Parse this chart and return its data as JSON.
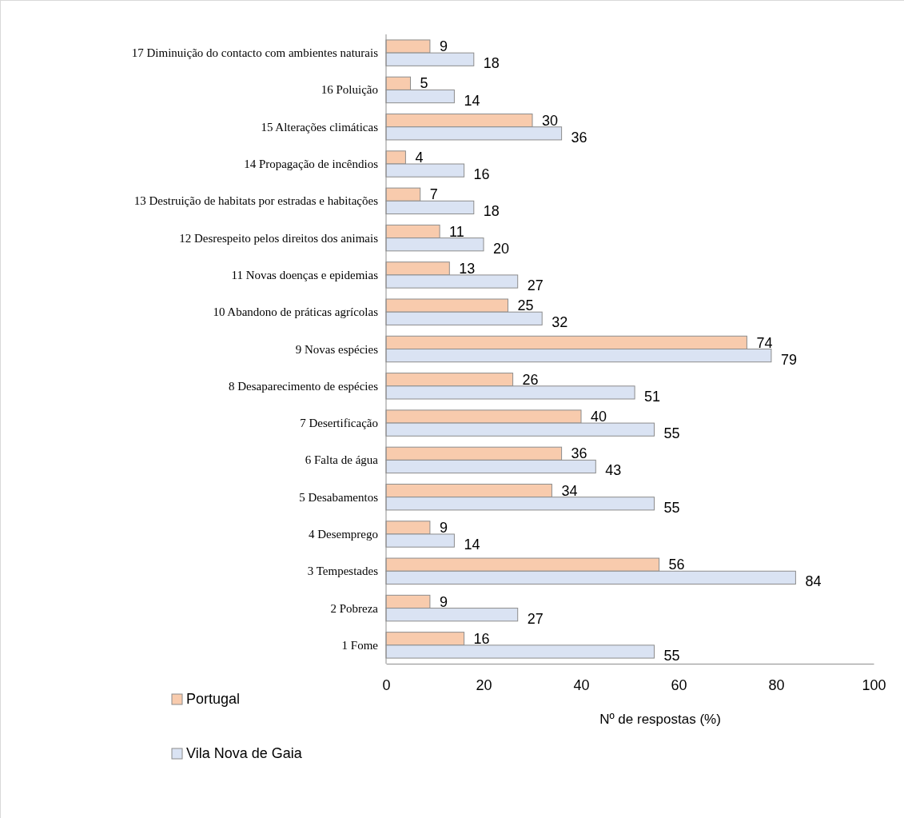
{
  "chart_data": {
    "type": "bar",
    "orientation": "horizontal",
    "xlabel": "Nº de respostas (%)",
    "categories": [
      "17 Diminuição do contacto com ambientes naturais",
      "16 Poluição",
      "15 Alterações climáticas",
      "14 Propagação de incêndios",
      "13 Destruição de habitats por estradas e habitações",
      "12 Desrespeito pelos direitos dos animais",
      "11 Novas doenças e epidemias",
      "10 Abandono de práticas agrícolas",
      "9 Novas espécies",
      "8 Desaparecimento de espécies",
      "7 Desertificação",
      "6 Falta de água",
      "5 Desabamentos",
      "4 Desemprego",
      "3 Tempestades",
      "2 Pobreza",
      "1 Fome"
    ],
    "series": [
      {
        "name": "Portugal",
        "color": "#f8cbad",
        "values": [
          9,
          5,
          30,
          4,
          7,
          11,
          13,
          25,
          74,
          26,
          40,
          36,
          34,
          9,
          56,
          9,
          16
        ]
      },
      {
        "name": "Vila Nova de Gaia",
        "color": "#dae3f3",
        "values": [
          18,
          14,
          36,
          16,
          18,
          20,
          27,
          32,
          79,
          51,
          55,
          43,
          55,
          14,
          84,
          27,
          55
        ]
      }
    ],
    "xlim": [
      0,
      100
    ],
    "xticks": [
      0,
      20,
      40,
      60,
      80,
      100
    ],
    "data_labels": true,
    "grid": false,
    "legend": "bottom left"
  }
}
